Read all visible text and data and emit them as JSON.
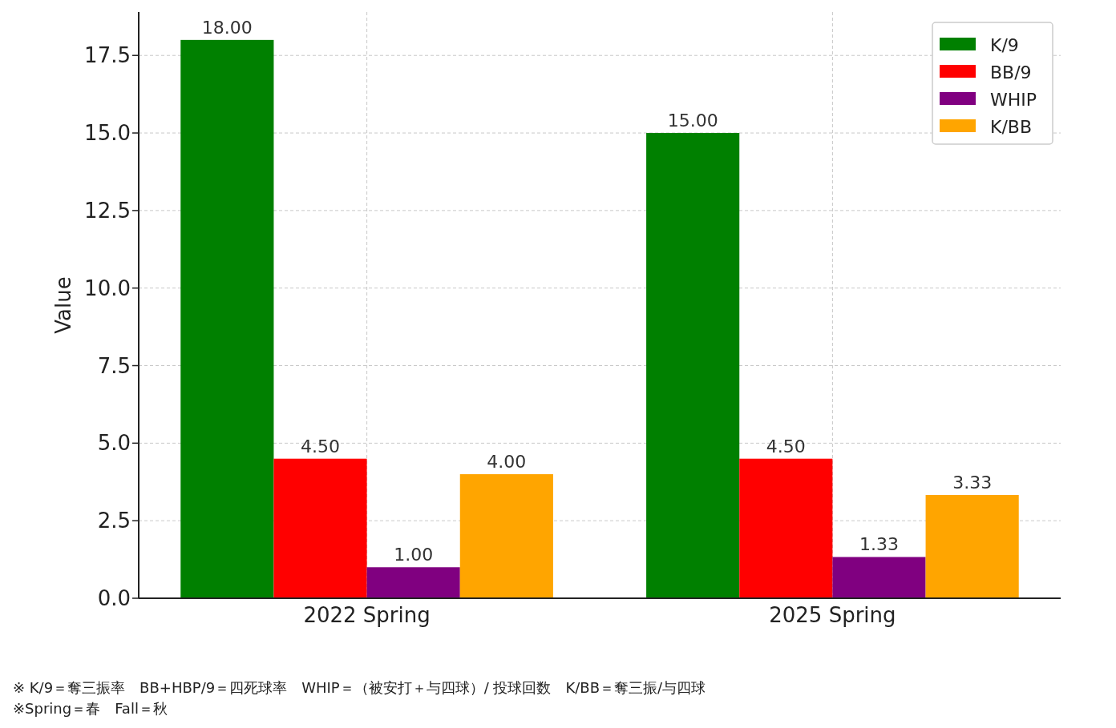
{
  "chart_data": {
    "type": "bar",
    "ylabel": "Value",
    "categories": [
      "2022 Spring",
      "2025 Spring"
    ],
    "series": [
      {
        "name": "K/9",
        "color": "#008000",
        "values": [
          18.0,
          15.0
        ],
        "value_labels": [
          "18.00",
          "15.00"
        ]
      },
      {
        "name": "BB/9",
        "color": "#ff0000",
        "values": [
          4.5,
          4.5
        ],
        "value_labels": [
          "4.50",
          "4.50"
        ]
      },
      {
        "name": "WHIP",
        "color": "#800080",
        "values": [
          1.0,
          1.33
        ],
        "value_labels": [
          "1.00",
          "1.33"
        ]
      },
      {
        "name": "K/BB",
        "color": "#ffa500",
        "values": [
          4.0,
          3.33
        ],
        "value_labels": [
          "4.00",
          "3.33"
        ]
      }
    ],
    "ylim": [
      0,
      18.9
    ],
    "yticks": [
      {
        "value": 0,
        "label": "0.0"
      },
      {
        "value": 2.5,
        "label": "2.5"
      },
      {
        "value": 5,
        "label": "5.0"
      },
      {
        "value": 7.5,
        "label": "7.5"
      },
      {
        "value": 10,
        "label": "10.0"
      },
      {
        "value": 12.5,
        "label": "12.5"
      },
      {
        "value": 15,
        "label": "15.0"
      },
      {
        "value": 17.5,
        "label": "17.5"
      }
    ],
    "grid": true,
    "legend": "top right",
    "annotations": [
      "※ K/9＝奪三振率　BB+HBP/9＝四死球率　WHIP＝（被安打＋与四球）/ 投球回数　K/BB＝奪三振/与四球",
      "※Spring＝春　Fall＝秋"
    ]
  }
}
